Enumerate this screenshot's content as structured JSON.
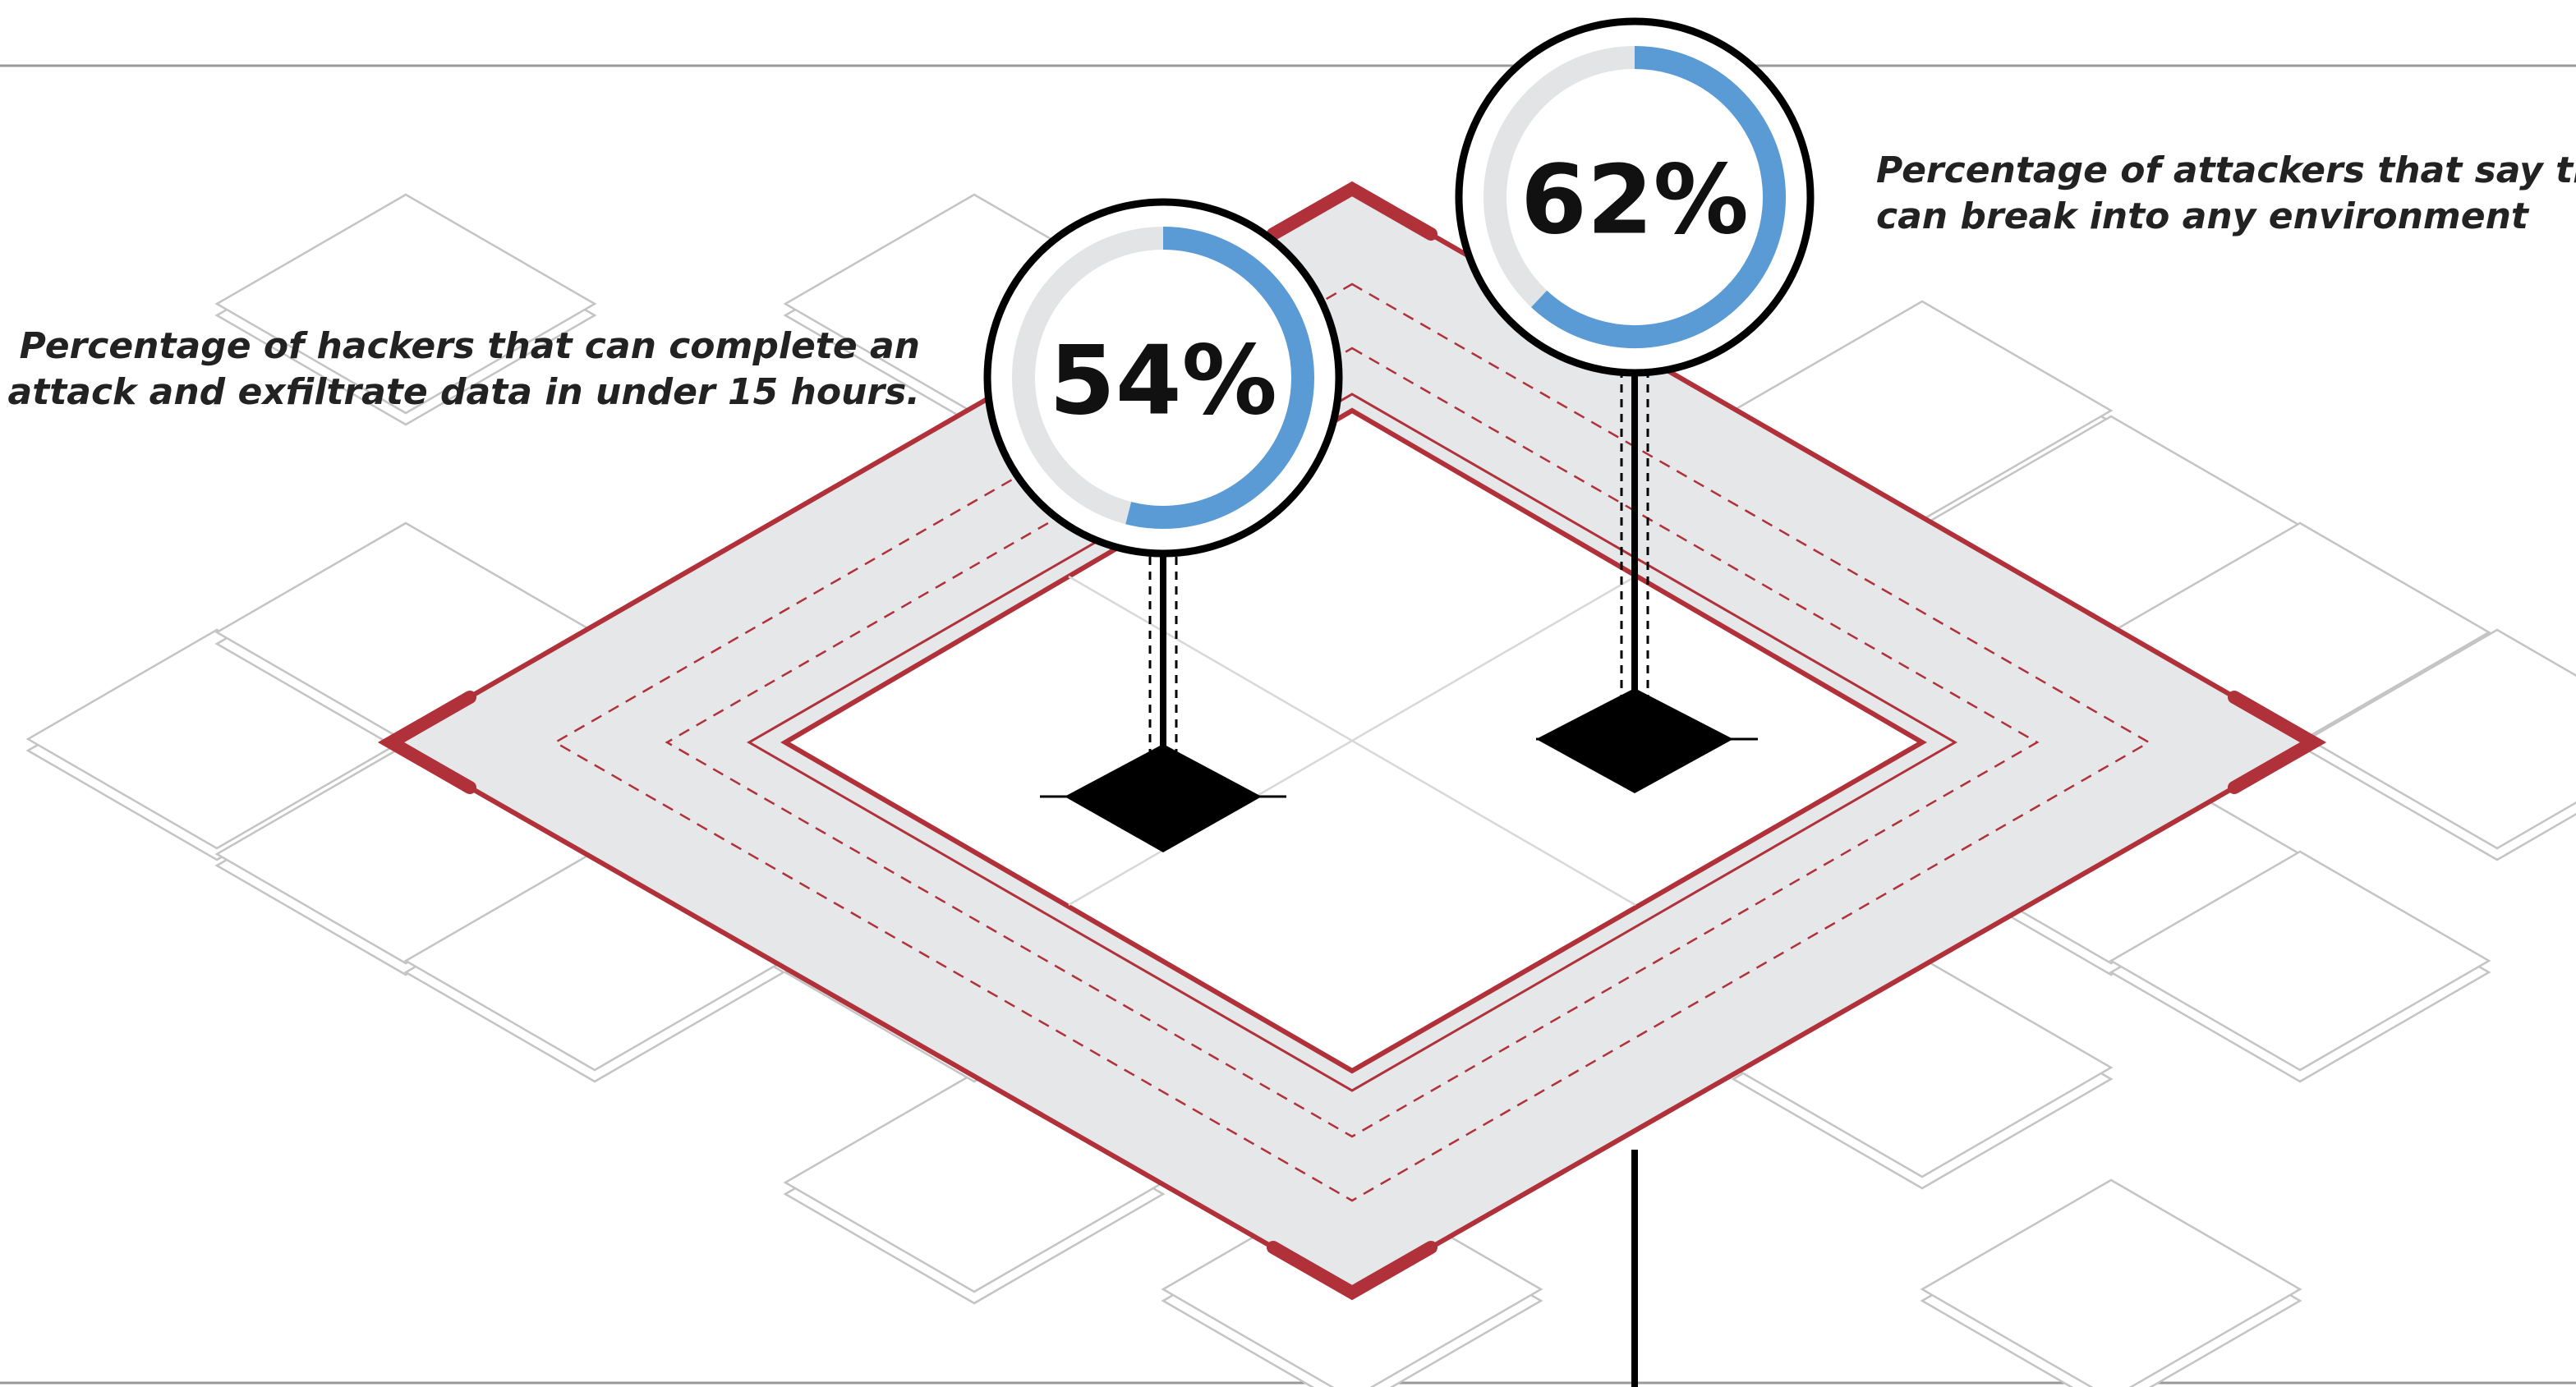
{
  "chart_data": [
    {
      "type": "gauge",
      "values": [
        54
      ],
      "value_labels": [
        "54%"
      ],
      "color": "#5b9bd5",
      "caption": [
        "Percentage of hackers that can complete an",
        "attack and exfiltrate data in under 15 hours."
      ]
    },
    {
      "type": "gauge",
      "values": [
        62
      ],
      "value_labels": [
        "62%"
      ],
      "color": "#5b9bd5",
      "caption": [
        "Percentage of attackers that say they",
        "can break into any environment"
      ]
    }
  ]
}
